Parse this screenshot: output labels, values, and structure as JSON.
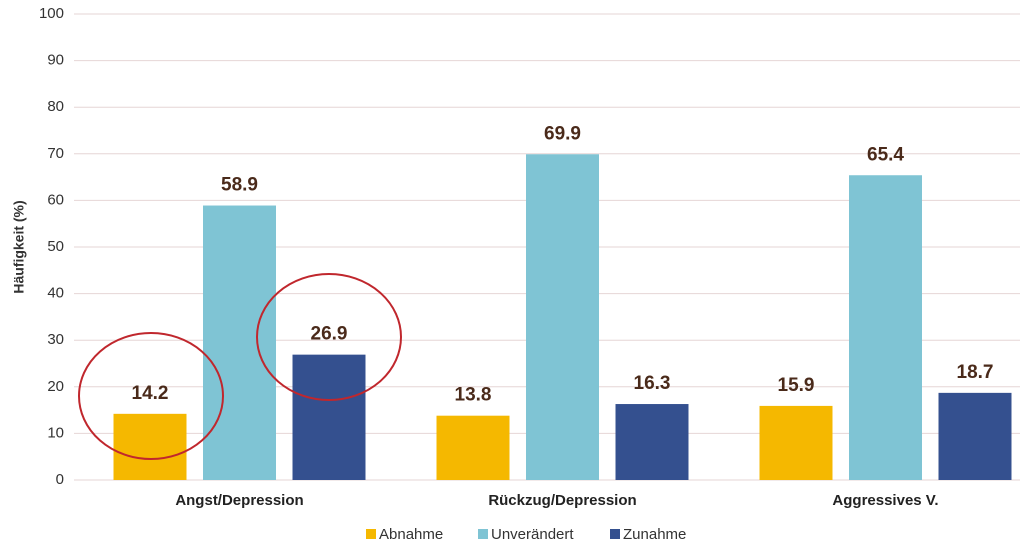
{
  "chart_data": {
    "type": "bar",
    "categories": [
      "Angst/Depression",
      "Rückzug/Depression",
      "Aggressives V."
    ],
    "series": [
      {
        "name": "Abnahme",
        "color": "#f5b800",
        "values": [
          14.2,
          13.8,
          15.9
        ]
      },
      {
        "name": "Unverändert",
        "color": "#7fc4d4",
        "values": [
          58.9,
          69.9,
          65.4
        ]
      },
      {
        "name": "Zunahme",
        "color": "#34508f",
        "values": [
          26.9,
          16.3,
          18.7
        ]
      }
    ],
    "y_label": "Häufigkeit (%)",
    "ylim": [
      0,
      100
    ],
    "yticks": [
      0,
      10,
      20,
      30,
      40,
      50,
      60,
      70,
      80,
      90,
      100
    ],
    "grid": true,
    "legend": "bottom"
  }
}
